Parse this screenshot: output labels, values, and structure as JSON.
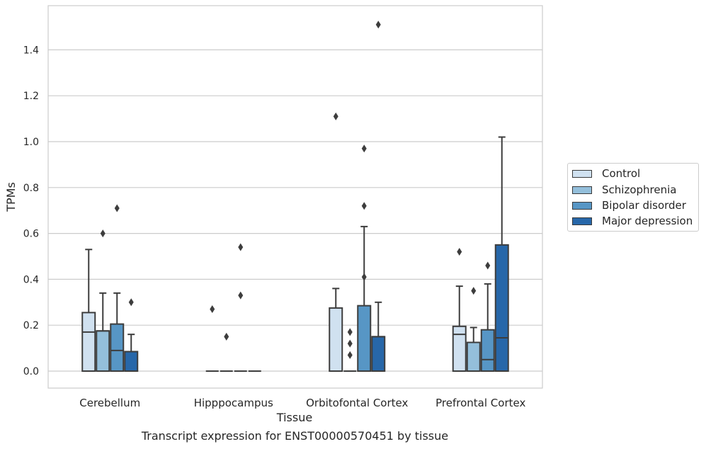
{
  "chart_data": {
    "type": "box",
    "xlabel": "Tissue",
    "ylabel": "TPMs",
    "ylim": [
      -0.07,
      1.6
    ],
    "yticks": [
      "0.0",
      "0.2",
      "0.4",
      "0.6",
      "0.8",
      "1.0",
      "1.2",
      "1.4"
    ],
    "ytick_values": [
      0,
      0.2,
      0.4,
      0.6,
      0.8,
      1.0,
      1.2,
      1.4
    ],
    "grid": "horizontal",
    "legend_position": "right",
    "categories": [
      "Cerebellum",
      "Hipppocampus",
      "Orbitofontal Cortex",
      "Prefrontal Cortex"
    ],
    "series": [
      {
        "name": "Control",
        "color": "#d0e1f0",
        "boxes": [
          {
            "q1": 0,
            "median": 0.17,
            "q3": 0.255,
            "whisker_low": 0,
            "whisker_high": 0.53,
            "outliers": []
          },
          {
            "q1": 0,
            "median": 0,
            "q3": 0,
            "whisker_low": 0,
            "whisker_high": 0,
            "outliers": [
              0.27
            ]
          },
          {
            "q1": 0,
            "median": 0,
            "q3": 0.275,
            "whisker_low": 0,
            "whisker_high": 0.36,
            "outliers": [
              1.11
            ]
          },
          {
            "q1": 0,
            "median": 0.16,
            "q3": 0.195,
            "whisker_low": 0,
            "whisker_high": 0.37,
            "outliers": [
              0.52
            ]
          }
        ]
      },
      {
        "name": "Schizophrenia",
        "color": "#94bfdb",
        "boxes": [
          {
            "q1": 0,
            "median": 0.175,
            "q3": 0.175,
            "whisker_low": 0,
            "whisker_high": 0.34,
            "outliers": [
              0.6
            ]
          },
          {
            "q1": 0,
            "median": 0,
            "q3": 0,
            "whisker_low": 0,
            "whisker_high": 0,
            "outliers": [
              0.15
            ]
          },
          {
            "q1": 0,
            "median": 0,
            "q3": 0,
            "whisker_low": 0,
            "whisker_high": 0,
            "outliers": [
              0.07,
              0.12,
              0.17
            ]
          },
          {
            "q1": 0,
            "median": 0.125,
            "q3": 0.125,
            "whisker_low": 0,
            "whisker_high": 0.19,
            "outliers": [
              0.35
            ]
          }
        ]
      },
      {
        "name": "Bipolar disorder",
        "color": "#5796c5",
        "boxes": [
          {
            "q1": 0,
            "median": 0.09,
            "q3": 0.205,
            "whisker_low": 0,
            "whisker_high": 0.34,
            "outliers": [
              0.71
            ]
          },
          {
            "q1": 0,
            "median": 0,
            "q3": 0,
            "whisker_low": 0,
            "whisker_high": 0,
            "outliers": [
              0.33,
              0.54
            ]
          },
          {
            "q1": 0,
            "median": 0,
            "q3": 0.285,
            "whisker_low": 0,
            "whisker_high": 0.63,
            "outliers": [
              0.41,
              0.72,
              0.97
            ]
          },
          {
            "q1": 0,
            "median": 0.05,
            "q3": 0.18,
            "whisker_low": 0,
            "whisker_high": 0.38,
            "outliers": [
              0.46
            ]
          }
        ]
      },
      {
        "name": "Major depression",
        "color": "#2767a9",
        "boxes": [
          {
            "q1": 0,
            "median": 0.085,
            "q3": 0.085,
            "whisker_low": 0,
            "whisker_high": 0.16,
            "outliers": [
              0.3
            ]
          },
          {
            "q1": 0,
            "median": 0,
            "q3": 0,
            "whisker_low": 0,
            "whisker_high": 0,
            "outliers": []
          },
          {
            "q1": 0,
            "median": 0.15,
            "q3": 0.15,
            "whisker_low": 0,
            "whisker_high": 0.3,
            "outliers": [
              1.51
            ]
          },
          {
            "q1": 0,
            "median": 0.145,
            "q3": 0.55,
            "whisker_low": 0,
            "whisker_high": 1.02,
            "outliers": []
          }
        ]
      }
    ]
  },
  "caption": "Transcript expression for ENST00000570451 by tissue"
}
